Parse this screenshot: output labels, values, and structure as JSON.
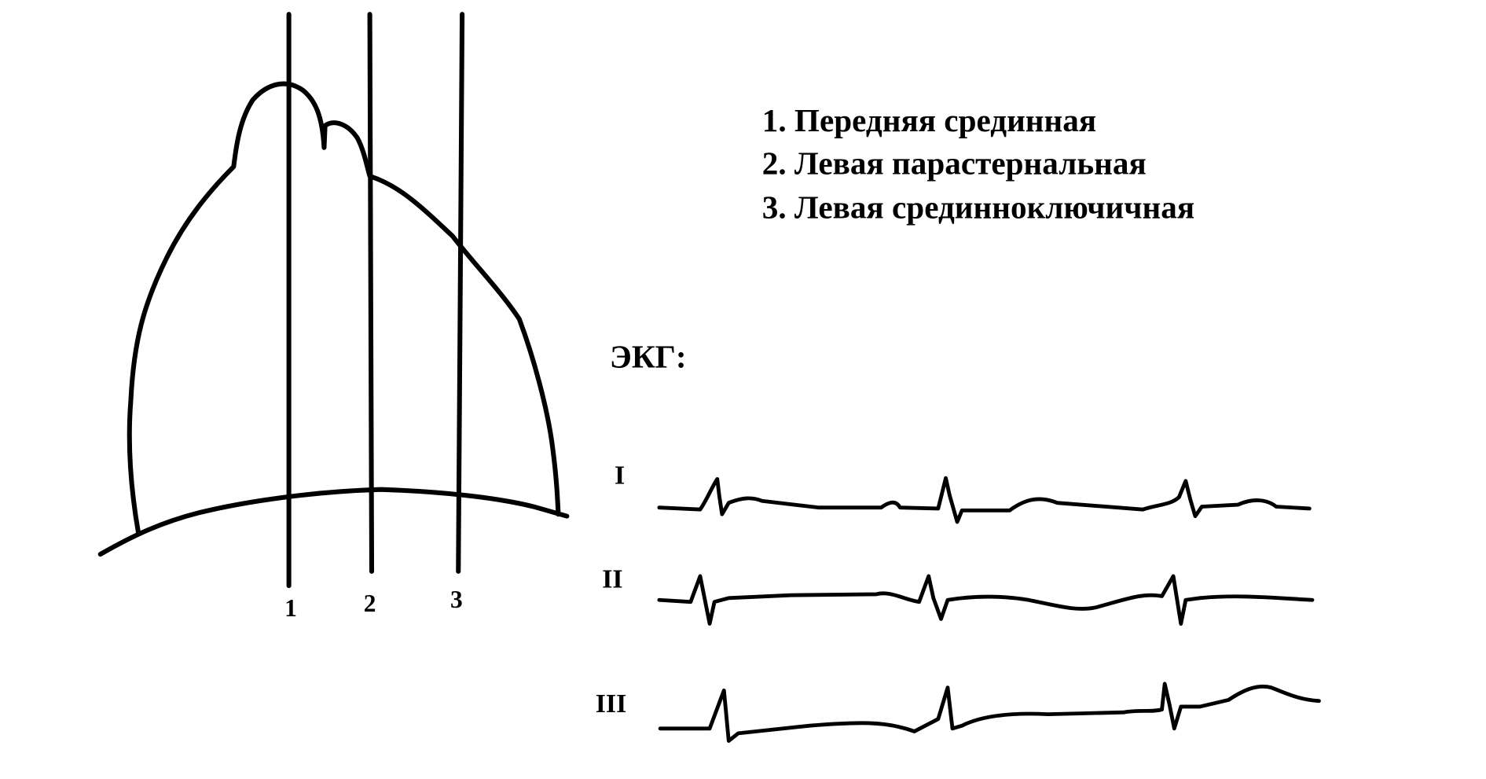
{
  "heart_lines": {
    "labels": [
      "1",
      "2",
      "3"
    ]
  },
  "legend": {
    "items": [
      "1. Передняя срединная",
      "2. Левая парастернальная",
      "3. Левая срединноключичная"
    ]
  },
  "ecg": {
    "title": "ЭКГ:",
    "leads": [
      "I",
      "II",
      "III"
    ]
  }
}
